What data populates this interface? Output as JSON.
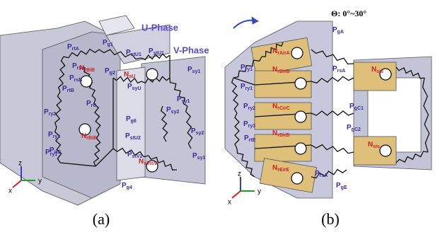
{
  "panel_a": {
    "caption": "(a)",
    "phase_labels": [
      "U-Phase",
      "V-Phase"
    ],
    "axes": [
      "z",
      "y",
      "x"
    ],
    "labels": [
      {
        "main": "P",
        "sub": "rtA",
        "color": "#3a2a9a"
      },
      {
        "main": "P",
        "sub": "g1",
        "color": "#3a2a9a"
      },
      {
        "main": "P",
        "sub": "stU1",
        "color": "#3a2a9a"
      },
      {
        "main": "P",
        "sub": "stU1",
        "color": "#3a2a9a"
      },
      {
        "main": "P",
        "sub": "rsA",
        "color": "#3a2a9a"
      },
      {
        "main": "P",
        "sub": "rsB",
        "color": "#3a2a9a"
      },
      {
        "main": "N",
        "sub": "rBiB",
        "color": "#d02020"
      },
      {
        "main": "N",
        "sub": "sU",
        "color": "#d02020"
      },
      {
        "main": "P",
        "sub": "rtB",
        "color": "#3a2a9a"
      },
      {
        "main": "P",
        "sub": "g2",
        "color": "#3a2a9a"
      },
      {
        "main": "P",
        "sub": "syU",
        "color": "#3a2a9a"
      },
      {
        "main": "P",
        "sub": "sy1",
        "color": "#3a2a9a"
      },
      {
        "main": "P",
        "sub": "sy1",
        "color": "#3a2a9a"
      },
      {
        "main": "P",
        "sub": "rC",
        "color": "#3a2a9a"
      },
      {
        "main": "P",
        "sub": "ry2",
        "color": "#3a2a9a"
      },
      {
        "main": "P",
        "sub": "sy2",
        "color": "#3a2a9a"
      },
      {
        "main": "P",
        "sub": "g6",
        "color": "#3a2a9a"
      },
      {
        "main": "P",
        "sub": "stU2",
        "color": "#3a2a9a"
      },
      {
        "main": "P",
        "sub": "ry1",
        "color": "#3a2a9a"
      },
      {
        "main": "N",
        "sub": "rBiB",
        "color": "#d02020"
      },
      {
        "main": "P",
        "sub": "sy2",
        "color": "#3a2a9a"
      },
      {
        "main": "P",
        "sub": "rtE",
        "color": "#3a2a9a"
      },
      {
        "main": "P",
        "sub": "stV2",
        "color": "#3a2a9a"
      },
      {
        "main": "N",
        "sub": "sVisV",
        "color": "#d02020"
      },
      {
        "main": "P",
        "sub": "ry1",
        "color": "#3a2a9a"
      },
      {
        "main": "P",
        "sub": "g4",
        "color": "#3a2a9a"
      },
      {
        "main": "P",
        "sub": "sy1",
        "color": "#3a2a9a"
      }
    ]
  },
  "panel_b": {
    "caption": "(b)",
    "angle_label": "Θ: 0°~30°",
    "axes": [
      "z",
      "y",
      "x"
    ],
    "labels": [
      {
        "main": "P",
        "sub": "gA",
        "color": "#3a2a9a"
      },
      {
        "main": "N",
        "sub": "rAirA",
        "color": "#d02020"
      },
      {
        "main": "P",
        "sub": "ry1",
        "color": "#3a2a9a"
      },
      {
        "main": "N",
        "sub": "rBirB",
        "color": "#d02020"
      },
      {
        "main": "P",
        "sub": "rsA",
        "color": "#3a2a9a"
      },
      {
        "main": "N",
        "sub": "sis",
        "color": "#d02020"
      },
      {
        "main": "P",
        "sub": "ry1",
        "color": "#3a2a9a"
      },
      {
        "main": "N",
        "sub": "rCirC",
        "color": "#d02020"
      },
      {
        "main": "P",
        "sub": "gC1",
        "color": "#3a2a9a"
      },
      {
        "main": "P",
        "sub": "ry2",
        "color": "#3a2a9a"
      },
      {
        "main": "P",
        "sub": "ry3",
        "color": "#3a2a9a"
      },
      {
        "main": "N",
        "sub": "rDirD",
        "color": "#d02020"
      },
      {
        "main": "P",
        "sub": "gC2",
        "color": "#3a2a9a"
      },
      {
        "main": "P",
        "sub": "rtE",
        "color": "#3a2a9a"
      },
      {
        "main": "N",
        "sub": "sis",
        "color": "#d02020"
      },
      {
        "main": "N",
        "sub": "rEirE",
        "color": "#d02020"
      },
      {
        "main": "P",
        "sub": "rsA",
        "color": "#3a2a9a"
      },
      {
        "main": "P",
        "sub": "gE",
        "color": "#3a2a9a"
      }
    ]
  }
}
